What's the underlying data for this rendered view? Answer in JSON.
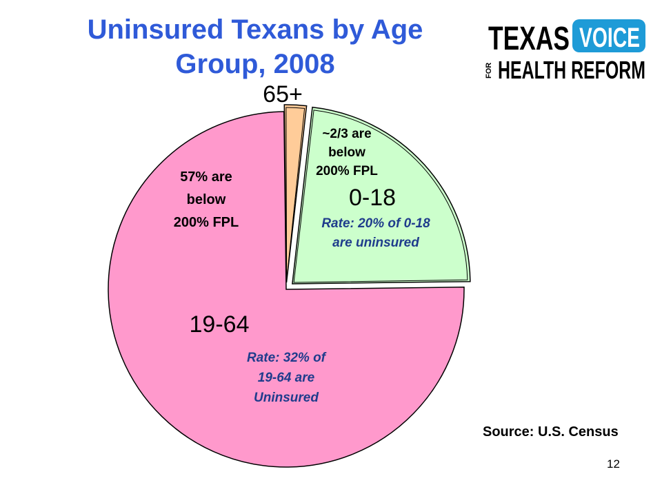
{
  "slide": {
    "title": "Uninsured Texans by Age Group, 2008",
    "source": "Source: U.S. Census",
    "page_number": "12"
  },
  "logo": {
    "word_top": "TEXAS",
    "word_badge": "VOICE",
    "word_for": "FOR",
    "word_bottom": "HEALTH REFORM"
  },
  "colors": {
    "title": "#2f5ad8",
    "annotation_blue": "#1f3c8c",
    "slice_19_64": "#ff99cc",
    "slice_0_18": "#ccffcc",
    "slice_65_plus": "#ffcc99",
    "logo_blue": "#1e9bd7"
  },
  "chart_data": {
    "type": "pie",
    "title": "Uninsured Texans by Age Group, 2008",
    "slices": [
      {
        "label": "0-18",
        "value": 23,
        "color": "#ccffcc",
        "exploded": true,
        "notes": [
          "~2/3 are",
          "below",
          "200% FPL"
        ],
        "rate": [
          "Rate: 20% of 0-18",
          "are uninsured"
        ]
      },
      {
        "label": "19-64",
        "value": 75,
        "color": "#ff99cc",
        "exploded": false,
        "notes": [
          "57% are",
          "below",
          "200% FPL"
        ],
        "rate": [
          "Rate: 32% of",
          "19-64 are",
          "Uninsured"
        ]
      },
      {
        "label": "65+",
        "value": 2,
        "color": "#ffcc99",
        "exploded": true,
        "notes": [],
        "rate": []
      }
    ]
  }
}
